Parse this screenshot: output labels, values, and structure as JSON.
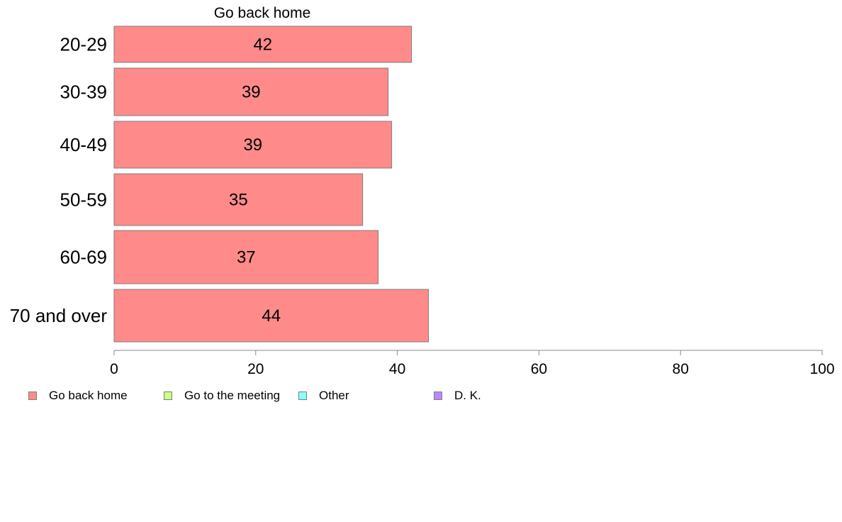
{
  "chart_data": {
    "type": "bar",
    "orientation": "horizontal",
    "title": "Go back home",
    "categories": [
      "20-29",
      "30-39",
      "40-49",
      "50-59",
      "60-69",
      "70 and over"
    ],
    "series": [
      {
        "name": "Go back home",
        "values": [
          42,
          38.7,
          39.2,
          35.1,
          37.3,
          44.4
        ],
        "labels": [
          "42",
          "39",
          "39",
          "35",
          "37",
          "44"
        ],
        "color": "#ff8a8a"
      }
    ],
    "xlim": [
      0,
      100
    ],
    "xticks": [
      0,
      20,
      40,
      60,
      80,
      100
    ],
    "xtick_labels": [
      "0",
      "20",
      "40",
      "60",
      "80",
      "100"
    ],
    "grid": false,
    "legend_position": "bottom",
    "legend": [
      {
        "label": "Go back home",
        "color": "#ff8a8a"
      },
      {
        "label": "Go to the meeting",
        "color": "#ccff88"
      },
      {
        "label": "Other",
        "color": "#88ffff"
      },
      {
        "label": "D. K.",
        "color": "#bb88ff"
      }
    ]
  }
}
